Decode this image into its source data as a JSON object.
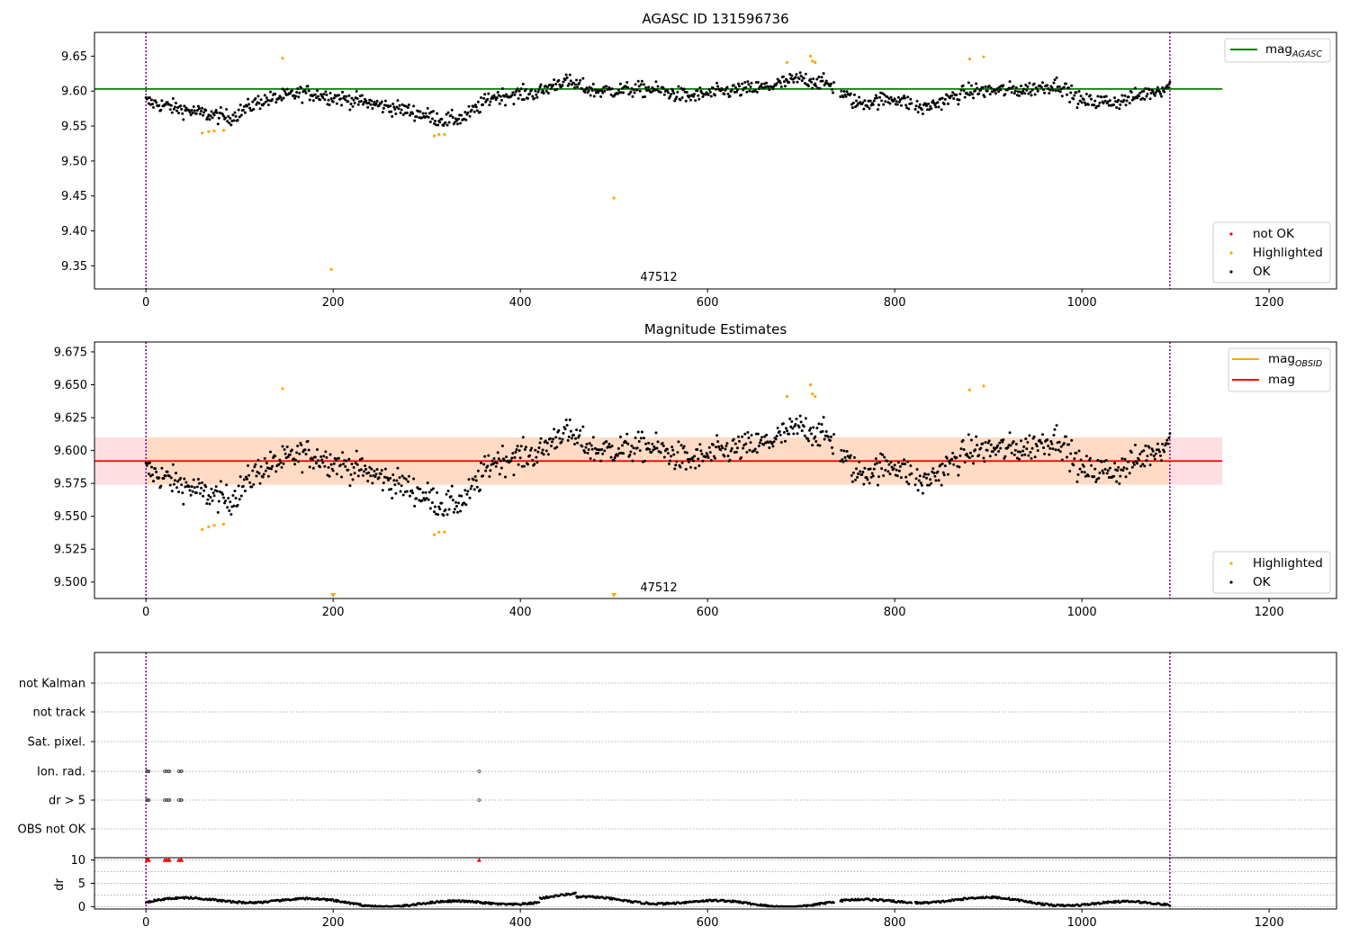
{
  "chart_data": [
    {
      "type": "scatter",
      "title": "AGASC ID 131596736",
      "xlim": [
        -55,
        1272
      ],
      "ylim": [
        9.317,
        9.684
      ],
      "xticks": [
        0,
        200,
        400,
        600,
        800,
        1000,
        1200
      ],
      "yticks": [
        9.35,
        9.4,
        9.45,
        9.5,
        9.55,
        9.6,
        9.65
      ],
      "ytick_labels": [
        "9.35",
        "9.40",
        "9.45",
        "9.50",
        "9.55",
        "9.60",
        "9.65"
      ],
      "vlines": [
        0,
        1094
      ],
      "vline_color": "#800080",
      "hline": {
        "name": "mag_AGASC",
        "label_main": "mag",
        "label_sub": "AGASC",
        "y": 9.603,
        "x_range": [
          -55,
          1150
        ],
        "color": "#008000"
      },
      "obsid_annotation": {
        "text": "47512",
        "x": 547
      },
      "series": [
        {
          "name": "not OK",
          "color": "#ff0000",
          "x": [],
          "y": []
        },
        {
          "name": "Highlighted",
          "color": "#ffa500",
          "x": [
            60,
            67,
            73,
            83,
            146,
            198,
            308,
            313,
            319,
            500,
            685,
            710,
            712,
            715,
            880,
            895
          ],
          "y": [
            9.54,
            9.542,
            9.543,
            9.544,
            9.647,
            9.345,
            9.536,
            9.538,
            9.538,
            9.447,
            9.641,
            9.65,
            9.643,
            9.641,
            9.646,
            9.649
          ]
        },
        {
          "name": "OK",
          "color": "#000000",
          "generated": "ok_points"
        }
      ],
      "legend_lines": "top-right",
      "legend_points": "bottom-right"
    },
    {
      "type": "scatter",
      "title": "Magnitude Estimates",
      "xlim": [
        -55,
        1272
      ],
      "ylim": [
        9.4875,
        9.6825
      ],
      "xticks": [
        0,
        200,
        400,
        600,
        800,
        1000,
        1200
      ],
      "yticks": [
        9.5,
        9.525,
        9.55,
        9.575,
        9.6,
        9.625,
        9.65,
        9.675
      ],
      "ytick_labels": [
        "9.500",
        "9.525",
        "9.550",
        "9.575",
        "9.600",
        "9.625",
        "9.650",
        "9.675"
      ],
      "vlines": [
        0,
        1094
      ],
      "vline_color": "#800080",
      "band": {
        "y_range": [
          9.574,
          9.61
        ],
        "x_range": [
          -55,
          1150
        ],
        "outer_color": "#ffb6c1",
        "inner_color": "#ffdab9",
        "inner_x_range": [
          0,
          1094
        ]
      },
      "lines": [
        {
          "name": "mag_OBSID",
          "label_main": "mag",
          "label_sub": "OBSID",
          "y": 9.592,
          "x_range": [
            0,
            1094
          ],
          "color": "#ffa500"
        },
        {
          "name": "mag",
          "label_main": "mag",
          "label_sub": "",
          "y": 9.592,
          "x_range": [
            -55,
            1150
          ],
          "color": "#ff0000"
        }
      ],
      "out_of_range_markers": [
        200,
        500
      ],
      "obsid_annotation": {
        "text": "47512",
        "x": 547
      },
      "series": [
        {
          "name": "Highlighted",
          "color": "#ffa500",
          "x": [
            60,
            67,
            73,
            83,
            146,
            308,
            313,
            319,
            685,
            710,
            712,
            715,
            880,
            895
          ],
          "y": [
            9.54,
            9.542,
            9.543,
            9.544,
            9.647,
            9.536,
            9.538,
            9.538,
            9.641,
            9.65,
            9.643,
            9.641,
            9.646,
            9.649
          ]
        },
        {
          "name": "OK",
          "color": "#000000",
          "generated": "ok_points"
        }
      ],
      "legend_lines": "top-right",
      "legend_points": "bottom-right"
    },
    {
      "type": "scatter",
      "title": "",
      "xlim": [
        -55,
        1272
      ],
      "xticks": [
        0,
        200,
        400,
        600,
        800,
        1000,
        1200
      ],
      "vlines": [
        0,
        1094
      ],
      "flag_rows": [
        "not Kalman",
        "not track",
        "Sat. pixel.",
        "Ion. rad.",
        "dr > 5",
        "OBS not OK"
      ],
      "flag_points": {
        "Ion. rad.": [
          1,
          2,
          3,
          20,
          22,
          24,
          25,
          35,
          37,
          38,
          356
        ],
        "dr > 5": [
          1,
          2,
          3,
          20,
          22,
          24,
          25,
          35,
          37,
          38,
          356
        ]
      },
      "dr_panel": {
        "ylabel": "dr",
        "ylim": [
          -0.5,
          10.5
        ],
        "yticks": [
          0,
          5,
          10
        ],
        "ytick_labels": [
          "0",
          "5",
          "10"
        ],
        "clipped_x": [
          1,
          2,
          3,
          20,
          22,
          24,
          25,
          35,
          37,
          38,
          356
        ],
        "clipped_y": 10,
        "generated": "dr_points"
      }
    }
  ]
}
